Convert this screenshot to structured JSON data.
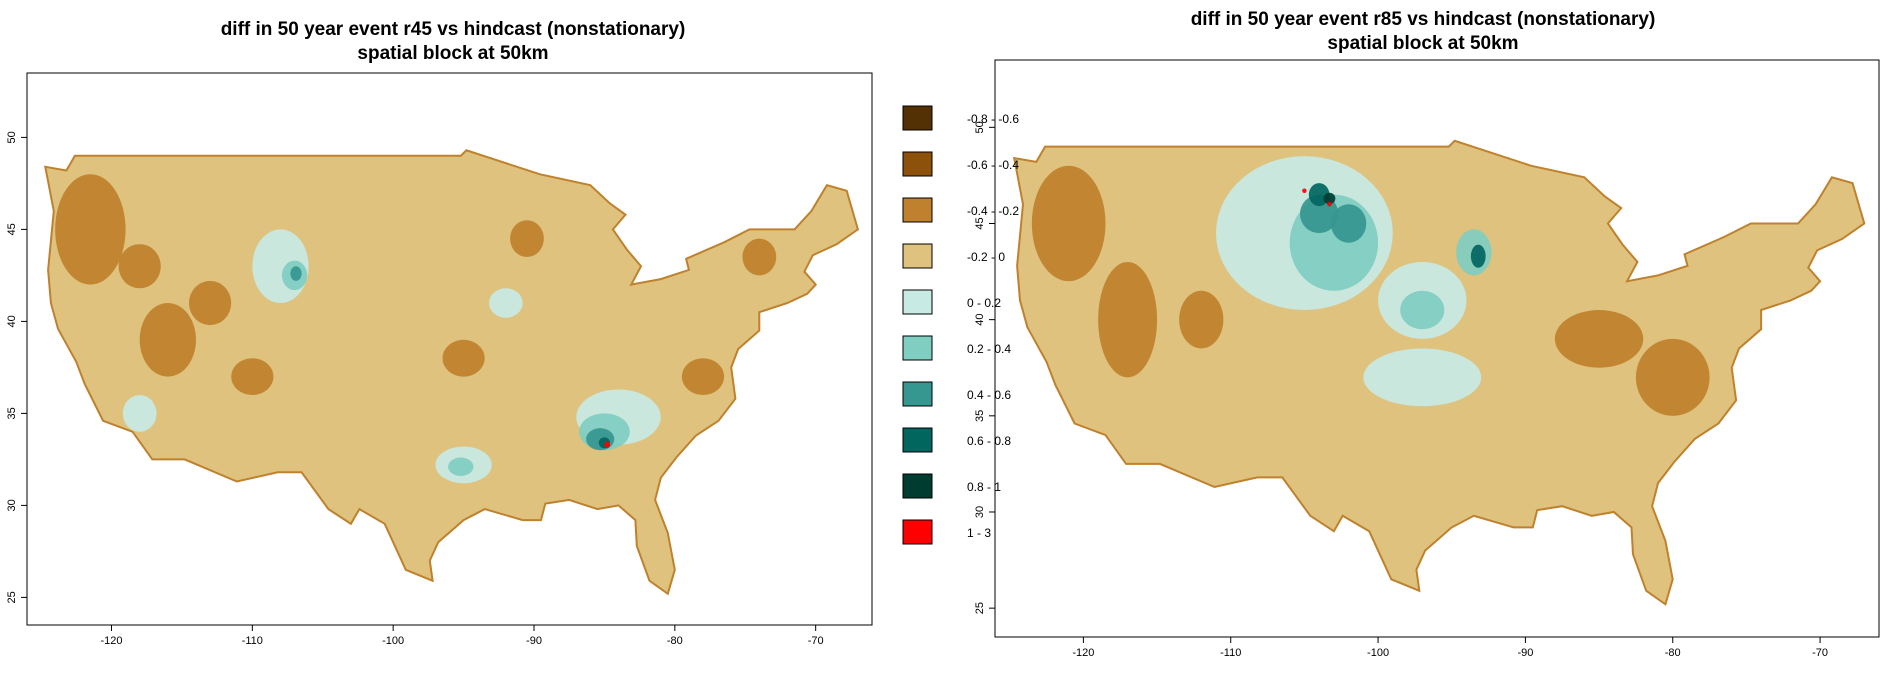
{
  "maps": [
    {
      "title_line1": "diff in 50 year event r45 vs hindcast (nonstationary)",
      "title_line2": "spatial block at 50km",
      "x_ticks": [
        "-120",
        "-110",
        "-100",
        "-90",
        "-80",
        "-70"
      ],
      "y_ticks": [
        "25",
        "30",
        "35",
        "40",
        "45",
        "50"
      ],
      "x_range": [
        -126,
        -66
      ],
      "y_range": [
        23.5,
        53.5
      ]
    },
    {
      "title_line1": "diff in 50 year event r85 vs hindcast (nonstationary)",
      "title_line2": "spatial block at 50km",
      "x_ticks": [
        "-120",
        "-110",
        "-100",
        "-90",
        "-80",
        "-70"
      ],
      "y_ticks": [
        "25",
        "30",
        "35",
        "40",
        "45",
        "50"
      ],
      "x_range": [
        -126,
        -66
      ],
      "y_range": [
        23.5,
        53.5
      ]
    }
  ],
  "legend": {
    "items": [
      {
        "label": "-0.8 - -0.6",
        "color": "#543005"
      },
      {
        "label": "-0.6 - -0.4",
        "color": "#8c510a"
      },
      {
        "label": "-0.4 - -0.2",
        "color": "#bf812d"
      },
      {
        "label": "-0.2 - 0",
        "color": "#dfc27d"
      },
      {
        "label": "0 - 0.2",
        "color": "#c7eae5"
      },
      {
        "label": "0.2 - 0.4",
        "color": "#80cdc1"
      },
      {
        "label": "0.4 - 0.6",
        "color": "#35978f"
      },
      {
        "label": "0.6 - 0.8",
        "color": "#01665e"
      },
      {
        "label": "0.8 - 1",
        "color": "#003c30"
      },
      {
        "label": "1 - 3",
        "color": "#ff0000"
      }
    ]
  }
}
